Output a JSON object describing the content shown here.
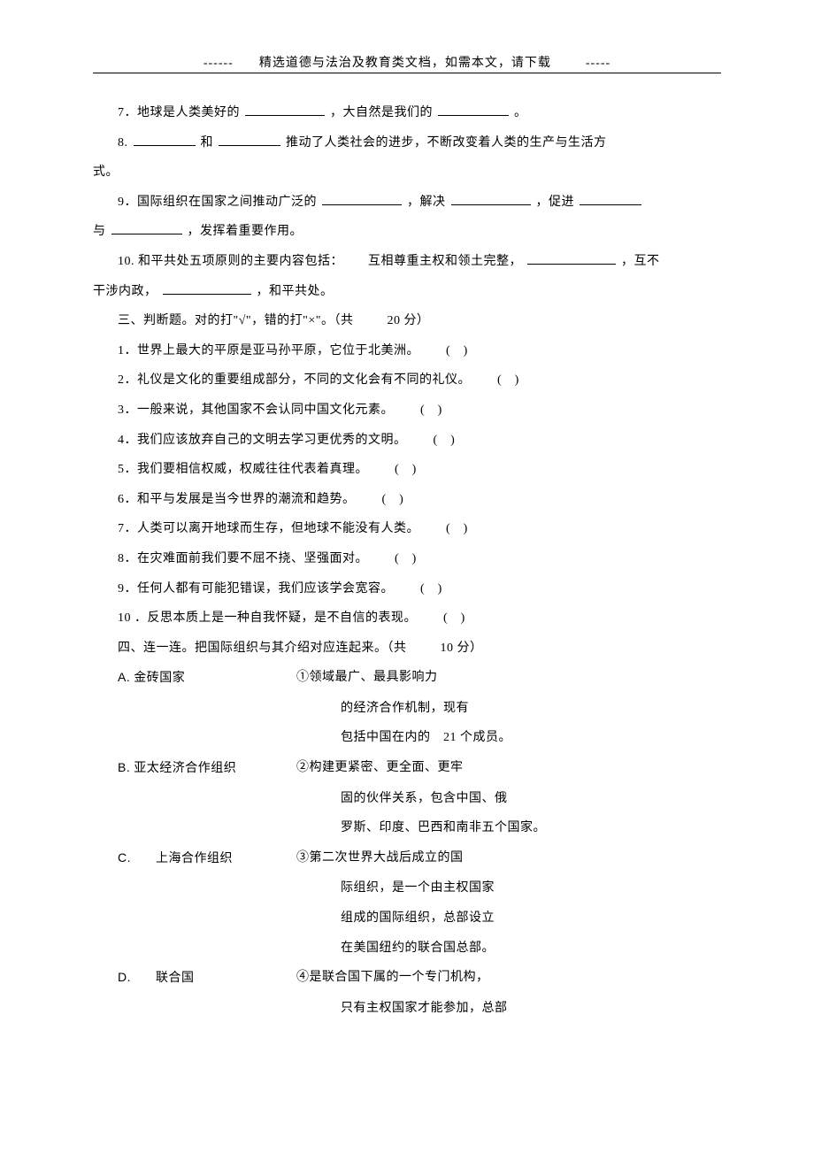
{
  "header": {
    "prefix": "------",
    "text": "精选道德与法治及教育类文档，如需本文，请下载",
    "suffix": "-----"
  },
  "fill": {
    "q7": {
      "num": "7．",
      "t1": "地球是人类美好的",
      "t2": "，大自然是我们的",
      "t3": "。"
    },
    "q8": {
      "num": "8.",
      "t1": "和",
      "t2": "推动了人类社会的进步，不断改变着人类的生产与生活方",
      "t3": "式。"
    },
    "q9": {
      "num": "9．",
      "t1": "国际组织在国家之间推动广泛的",
      "t2": "，解决",
      "t3": "，促进",
      "t4": "与",
      "t5": "，发挥着重要作用。"
    },
    "q10": {
      "num": "10.",
      "t1": "和平共处五项原则的主要内容包括：",
      "t2": "互相尊重主权和领土完整，",
      "t3": "，互不",
      "t4": "干涉内政，",
      "t5": "，和平共处。"
    }
  },
  "sec3": {
    "title": "三、判断题。对的打\"√\"，错的打\"×\"。（共",
    "points": "20 分）",
    "items": [
      {
        "num": "1．",
        "text": "世界上最大的平原是亚马孙平原，它位于北美洲。",
        "paren": "(　)"
      },
      {
        "num": "2．",
        "text": "礼仪是文化的重要组成部分，不同的文化会有不同的礼仪。",
        "paren": "(　)"
      },
      {
        "num": "3．",
        "text": "一般来说，其他国家不会认同中国文化元素。",
        "paren": "(　)"
      },
      {
        "num": "4．",
        "text": "我们应该放弃自己的文明去学习更优秀的文明。",
        "paren": "(　)"
      },
      {
        "num": "5．",
        "text": "我们要相信权威，权威往往代表着真理。",
        "paren": "(　)"
      },
      {
        "num": "6．",
        "text": "和平与发展是当今世界的潮流和趋势。",
        "paren": "(　)"
      },
      {
        "num": "7．",
        "text": "人类可以离开地球而生存，但地球不能没有人类。",
        "paren": "(　)"
      },
      {
        "num": "8．",
        "text": "在灾难面前我们要不屈不挠、坚强面对。",
        "paren": "(　)"
      },
      {
        "num": "9．",
        "text": "任何人都有可能犯错误，我们应该学会宽容。",
        "paren": "(　)"
      },
      {
        "num": "10 ．",
        "text": "反思本质上是一种自我怀疑，是不自信的表现。",
        "paren": "(　)"
      }
    ]
  },
  "sec4": {
    "title": "四、连一连。把国际组织与其介绍对应连起来。（共",
    "points": "10 分）",
    "rows": [
      {
        "label": "A.",
        "name": "金砖国家",
        "desc": "①领域最广、最具影响力",
        "cont": [
          "的经济合作机制，现有",
          "包括中国在内的　21 个成员。"
        ]
      },
      {
        "label": "B.",
        "name": "亚太经济合作组织",
        "desc": "②构建更紧密、更全面、更牢",
        "cont": [
          "固的伙伴关系，包含中国、俄",
          "罗斯、印度、巴西和南非五个国家。"
        ]
      },
      {
        "label": "C.",
        "name": "上海合作组织",
        "desc": "③第二次世界大战后成立的国",
        "cont": [
          "际组织，是一个由主权国家",
          "组成的国际组织，总部设立",
          "在美国纽约的联合国总部。"
        ]
      },
      {
        "label": "D.",
        "name": "联合国",
        "desc": "④是联合国下属的一个专门机构，",
        "cont": [
          "只有主权国家才能参加，总部"
        ]
      }
    ]
  }
}
